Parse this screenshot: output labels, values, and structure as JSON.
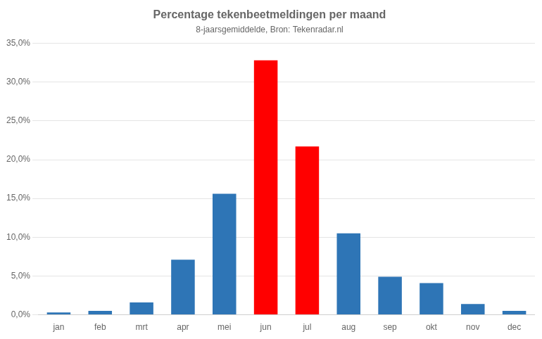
{
  "chart_data": {
    "type": "bar",
    "title": "Percentage tekenbeetmeldingen per maand",
    "subtitle": "8-jaarsgemiddelde, Bron: Tekenradar.nl",
    "categories": [
      "jan",
      "feb",
      "mrt",
      "apr",
      "mei",
      "jun",
      "jul",
      "aug",
      "sep",
      "okt",
      "nov",
      "dec"
    ],
    "values": [
      0.3,
      0.5,
      1.6,
      7.1,
      15.6,
      32.8,
      21.7,
      10.5,
      4.9,
      4.1,
      1.4,
      0.5
    ],
    "colors": [
      "#2E75B6",
      "#2E75B6",
      "#2E75B6",
      "#2E75B6",
      "#2E75B6",
      "#FF0000",
      "#FF0000",
      "#2E75B6",
      "#2E75B6",
      "#2E75B6",
      "#2E75B6",
      "#2E75B6"
    ],
    "ylim": [
      0,
      35
    ],
    "yticks": [
      {
        "value": 0,
        "label": "0,0%"
      },
      {
        "value": 5,
        "label": "5,0%"
      },
      {
        "value": 10,
        "label": "10,0%"
      },
      {
        "value": 15,
        "label": "15,0%"
      },
      {
        "value": 20,
        "label": "20,0%"
      },
      {
        "value": 25,
        "label": "25,0%"
      },
      {
        "value": 30,
        "label": "30,0%"
      },
      {
        "value": 35,
        "label": "35,0%"
      }
    ],
    "grid": true
  }
}
